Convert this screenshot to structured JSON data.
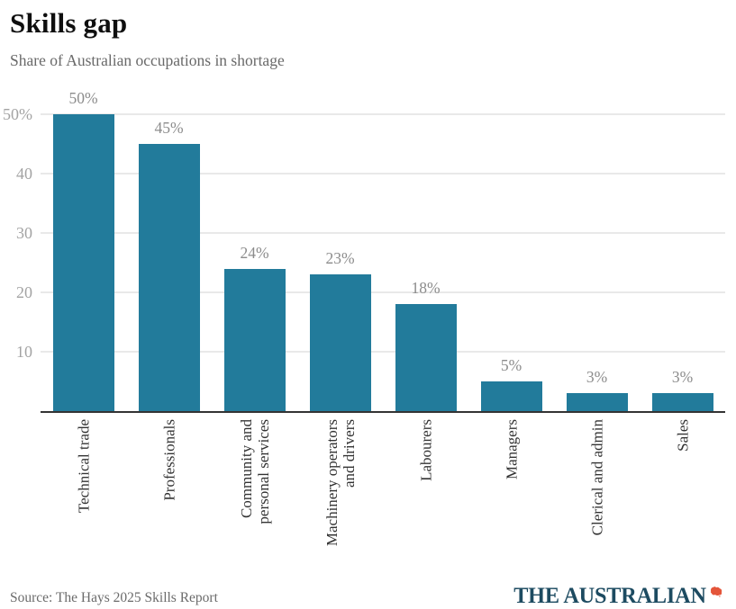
{
  "header": {
    "title": "Skills gap",
    "subtitle": "Share of Australian occupations in shortage"
  },
  "footer": {
    "source": "Source: The Hays 2025 Skills Report",
    "logo_text": "THE AUSTRALIAN",
    "logo_mark": "australia-map-icon"
  },
  "colors": {
    "bar": "#227b9b",
    "grid": "#e9e9e9",
    "axis": "#333333",
    "tick_label": "#a3a3a3",
    "value_label": "#8c8c8c",
    "category_label": "#333333",
    "logo": "#1d4b61",
    "logo_mark": "#e4553a"
  },
  "chart_data": {
    "type": "bar",
    "title": "Skills gap",
    "subtitle": "Share of Australian occupations in shortage",
    "categories": [
      "Technical trade",
      "Professionals",
      "Community and\npersonal services",
      "Machinery operators\nand drivers",
      "Labourers",
      "Managers",
      "Clerical and admin",
      "Sales"
    ],
    "values": [
      50,
      45,
      24,
      23,
      18,
      5,
      3,
      3
    ],
    "value_labels": [
      "50%",
      "45%",
      "24%",
      "23%",
      "18%",
      "5%",
      "3%",
      "3%"
    ],
    "xlabel": "",
    "ylabel": "",
    "ylim": [
      0,
      50
    ],
    "yticks": [
      10,
      20,
      30,
      40,
      50
    ],
    "ytick_labels": [
      "10",
      "20",
      "30",
      "40",
      "50%"
    ],
    "grid": "horizontal",
    "legend": "none",
    "bar_orientation": "vertical",
    "category_label_rotation": -90,
    "source": "Source: The Hays 2025 Skills Report"
  }
}
